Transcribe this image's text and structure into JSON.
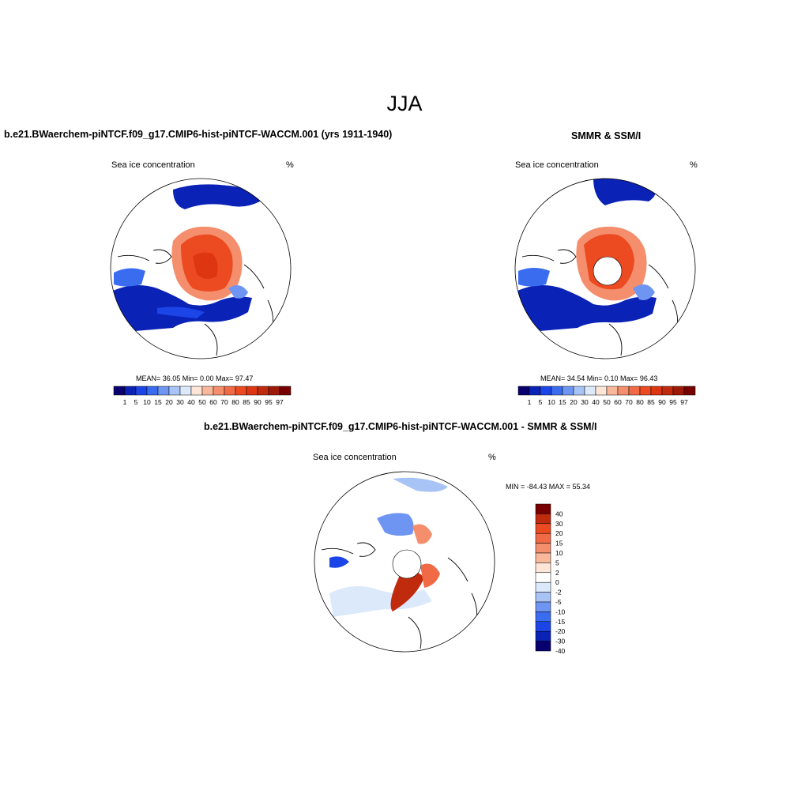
{
  "season_title": "JJA",
  "model_panel": {
    "title": "b.e21.BWaerchem-piNTCF.f09_g17.CMIP6-hist-piNTCF-WACCM.001 (yrs 1911-1940)",
    "variable": "Sea ice concentration",
    "units": "%",
    "stats": "MEAN=  36.05  Min=   0.00  Max=  97.47"
  },
  "obs_panel": {
    "title": "SMMR & SSM/I",
    "variable": "Sea ice concentration",
    "units": "%",
    "stats": "MEAN=  34.54  Min=   0.10  Max=  96.43"
  },
  "diff_panel": {
    "title": "b.e21.BWaerchem-piNTCF.f09_g17.CMIP6-hist-piNTCF-WACCM.001 - SMMR & SSM/I",
    "variable": "Sea ice concentration",
    "units": "%",
    "minmax": "MIN = -84.43 MAX =  55.34"
  },
  "colors": {
    "conc": [
      "#08006e",
      "#0a22b5",
      "#1c45e8",
      "#3a6cf0",
      "#6f95f2",
      "#a8c3f5",
      "#dbe9fb",
      "#fde5d8",
      "#f9b89a",
      "#f48e6c",
      "#f06a45",
      "#ec4a20",
      "#dd3611",
      "#c02a0d",
      "#9e1a08",
      "#780000"
    ],
    "diff": [
      "#08006e",
      "#0a22b5",
      "#1c45e8",
      "#3a6cf0",
      "#6f95f2",
      "#a8c3f5",
      "#dbe9fb",
      "#ffffff",
      "#fde5d8",
      "#f9b89a",
      "#f48e6c",
      "#f06a45",
      "#ec4a20",
      "#c02a0d",
      "#780000"
    ]
  },
  "legend_conc": [
    "1",
    "5",
    "10",
    "15",
    "20",
    "30",
    "40",
    "50",
    "60",
    "70",
    "80",
    "85",
    "90",
    "95",
    "97"
  ],
  "legend_diff": [
    "40",
    "30",
    "20",
    "15",
    "10",
    "5",
    "2",
    "0",
    "-2",
    "-5",
    "-10",
    "-15",
    "-20",
    "-30",
    "-40"
  ]
}
